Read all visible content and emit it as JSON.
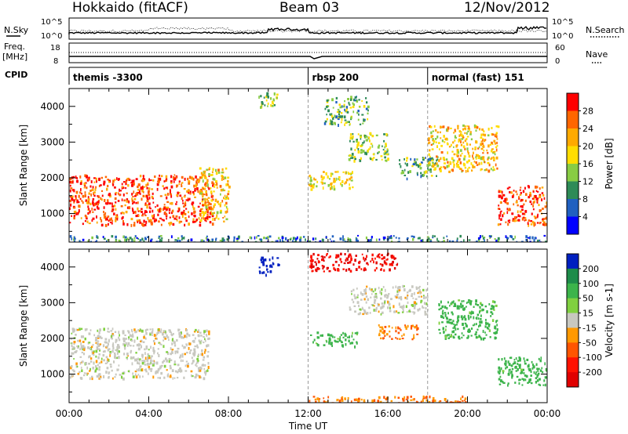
{
  "header": {
    "station": "Hokkaido (fitACF)",
    "beam": "Beam 03",
    "date": "12/Nov/2012"
  },
  "top_panels": {
    "nsky_label": "N.Sky",
    "nsearch_label": "N.Search",
    "noise_ticks": [
      "10^5",
      "10^0"
    ],
    "freq_label": "Freq.",
    "freq_unit": "[MHz]",
    "freq_ticks": [
      "18",
      "8"
    ],
    "nave_ticks": [
      "60",
      "0"
    ],
    "nave_label": "Nave",
    "cpid_label": "CPID",
    "cpid_segments": [
      {
        "label": "themis -3300",
        "start_hour": 0
      },
      {
        "label": "rbsp 200",
        "start_hour": 12
      },
      {
        "label": "normal (fast) 151",
        "start_hour": 18
      }
    ]
  },
  "chart_data": [
    {
      "type": "heatmap",
      "title": "",
      "xlabel": "Time UT",
      "ylabel": "Slant Range [km]",
      "x_ticks": [
        "00:00",
        "04:00",
        "08:00",
        "12:00",
        "16:00",
        "20:00",
        "00:00"
      ],
      "xlim_hours": [
        0,
        24
      ],
      "y_ticks": [
        1000,
        2000,
        3000,
        4000
      ],
      "ylim": [
        200,
        4500
      ],
      "colorbar": {
        "label": "Power [dB]",
        "ticks": [
          28,
          24,
          20,
          16,
          12,
          8,
          4
        ],
        "colors": [
          "#ff0000",
          "#ff6600",
          "#ffaa00",
          "#ffdd00",
          "#88cc44",
          "#2e8b57",
          "#2060c0",
          "#0000ff"
        ]
      },
      "regions": [
        {
          "t": [
            0,
            7.2
          ],
          "r": [
            700,
            2100
          ],
          "value_db": 28
        },
        {
          "t": [
            6.5,
            8.0
          ],
          "r": [
            800,
            2300
          ],
          "value_db": 20
        },
        {
          "t": [
            9.5,
            10.5
          ],
          "r": [
            4000,
            4400
          ],
          "value_db": 14
        },
        {
          "t": [
            12.0,
            14.2
          ],
          "r": [
            1700,
            2200
          ],
          "value_db": 18
        },
        {
          "t": [
            12.8,
            15.0
          ],
          "r": [
            3500,
            4300
          ],
          "value_db": 12
        },
        {
          "t": [
            14.0,
            16.0
          ],
          "r": [
            2500,
            3300
          ],
          "value_db": 14
        },
        {
          "t": [
            16.5,
            18.5
          ],
          "r": [
            2000,
            2600
          ],
          "value_db": 12
        },
        {
          "t": [
            18.0,
            21.5
          ],
          "r": [
            2200,
            3500
          ],
          "value_db": 20
        },
        {
          "t": [
            21.5,
            24.0
          ],
          "r": [
            700,
            1800
          ],
          "value_db": 28
        },
        {
          "t": [
            0,
            24
          ],
          "r": [
            200,
            400
          ],
          "value_db": 8
        }
      ],
      "cpid_boundaries_hours": [
        12,
        18
      ]
    },
    {
      "type": "heatmap",
      "title": "",
      "xlabel": "Time UT",
      "ylabel": "Slant Range [km]",
      "x_ticks": [
        "00:00",
        "04:00",
        "08:00",
        "12:00",
        "16:00",
        "20:00",
        "00:00"
      ],
      "xlim_hours": [
        0,
        24
      ],
      "y_ticks": [
        1000,
        2000,
        3000,
        4000
      ],
      "ylim": [
        200,
        4500
      ],
      "colorbar": {
        "label": "Velocity [m s-1]",
        "ticks": [
          200,
          100,
          50,
          15,
          -15,
          -50,
          -100,
          -200
        ],
        "colors": [
          "#0020c0",
          "#1e8c4a",
          "#3cb44b",
          "#80d040",
          "#c8c8c0",
          "#ff9900",
          "#ff5500",
          "#ff1100",
          "#e00000"
        ]
      },
      "regions": [
        {
          "t": [
            0,
            7.0
          ],
          "r": [
            900,
            2300
          ],
          "value_ms": 0
        },
        {
          "t": [
            9.5,
            10.5
          ],
          "r": [
            3800,
            4300
          ],
          "value_ms": 200
        },
        {
          "t": [
            12.0,
            16.5
          ],
          "r": [
            3900,
            4400
          ],
          "value_ms": -200
        },
        {
          "t": [
            12.0,
            14.5
          ],
          "r": [
            1800,
            2200
          ],
          "value_ms": 50
        },
        {
          "t": [
            14.0,
            18.0
          ],
          "r": [
            2700,
            3500
          ],
          "value_ms": 0
        },
        {
          "t": [
            15.5,
            17.5
          ],
          "r": [
            2000,
            2400
          ],
          "value_ms": -50
        },
        {
          "t": [
            18.5,
            21.5
          ],
          "r": [
            2000,
            3100
          ],
          "value_ms": 50
        },
        {
          "t": [
            21.5,
            24.0
          ],
          "r": [
            700,
            1500
          ],
          "value_ms": 50
        },
        {
          "t": [
            12.0,
            20.0
          ],
          "r": [
            200,
            400
          ],
          "value_ms": -50
        }
      ],
      "cpid_boundaries_hours": [
        12,
        18
      ]
    }
  ]
}
